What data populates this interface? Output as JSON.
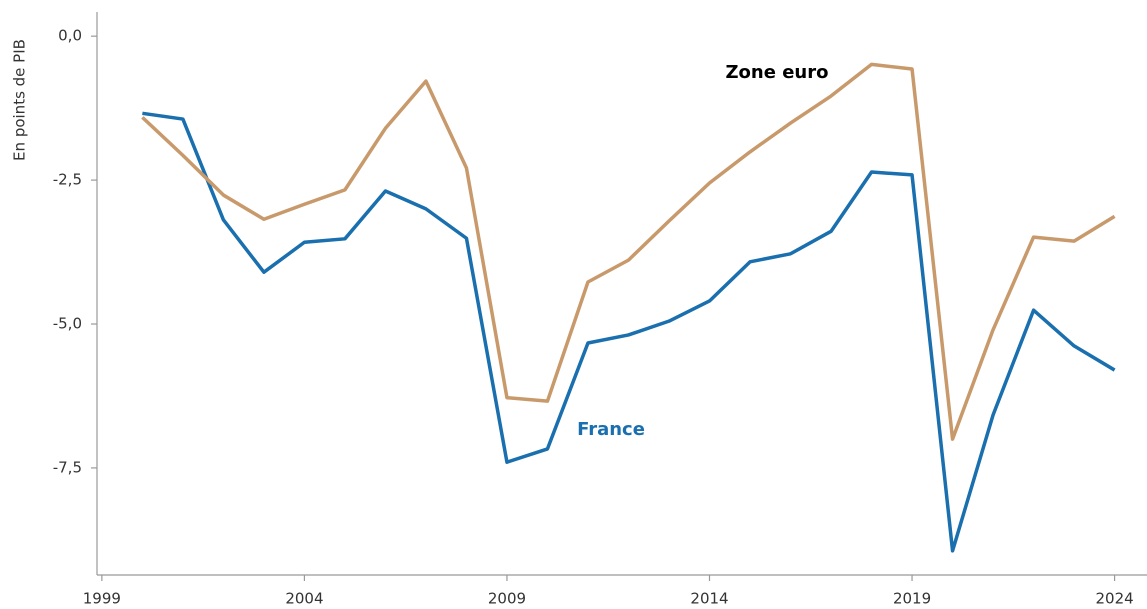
{
  "chart_data": {
    "type": "line",
    "y_label": "En points de PIB",
    "annotations": [
      "Zone euro",
      "France"
    ],
    "x": [
      2000,
      2001,
      2002,
      2003,
      2004,
      2005,
      2006,
      2007,
      2008,
      2009,
      2010,
      2011,
      2012,
      2013,
      2014,
      2015,
      2016,
      2017,
      2018,
      2019,
      2020,
      2021,
      2022,
      2023,
      2024
    ],
    "series": [
      {
        "name": "France",
        "color": "#1a6fae",
        "values": [
          -1.34,
          -1.44,
          -3.19,
          -4.1,
          -3.58,
          -3.52,
          -2.69,
          -3.0,
          -3.51,
          -7.4,
          -7.17,
          -5.33,
          -5.19,
          -4.95,
          -4.6,
          -3.92,
          -3.78,
          -3.39,
          -2.36,
          -2.41,
          -8.94,
          -6.58,
          -4.76,
          -5.38,
          -5.8
        ]
      },
      {
        "name": "Zone euro",
        "color": "#c8996b",
        "values": [
          -1.41,
          -2.07,
          -2.76,
          -3.18,
          -2.92,
          -2.67,
          -1.6,
          -0.78,
          -2.29,
          -6.28,
          -6.34,
          -4.27,
          -3.89,
          -3.21,
          -2.55,
          -2.01,
          -1.51,
          -1.04,
          -0.49,
          -0.57,
          -7.0,
          -5.1,
          -3.49,
          -3.56,
          -3.13
        ]
      }
    ],
    "xlim": [
      1998.88,
      2024.8
    ],
    "xticks": [
      1999,
      2004,
      2009,
      2014,
      2019,
      2024
    ],
    "ylim": [
      -9.36,
      0.42
    ],
    "yticks": [
      {
        "value": 0,
        "label": "0,0"
      },
      {
        "value": -2.5,
        "label": "-2,5"
      },
      {
        "value": -5,
        "label": "-5,0"
      },
      {
        "value": -7.5,
        "label": "-7,5"
      }
    ],
    "grid": false
  }
}
